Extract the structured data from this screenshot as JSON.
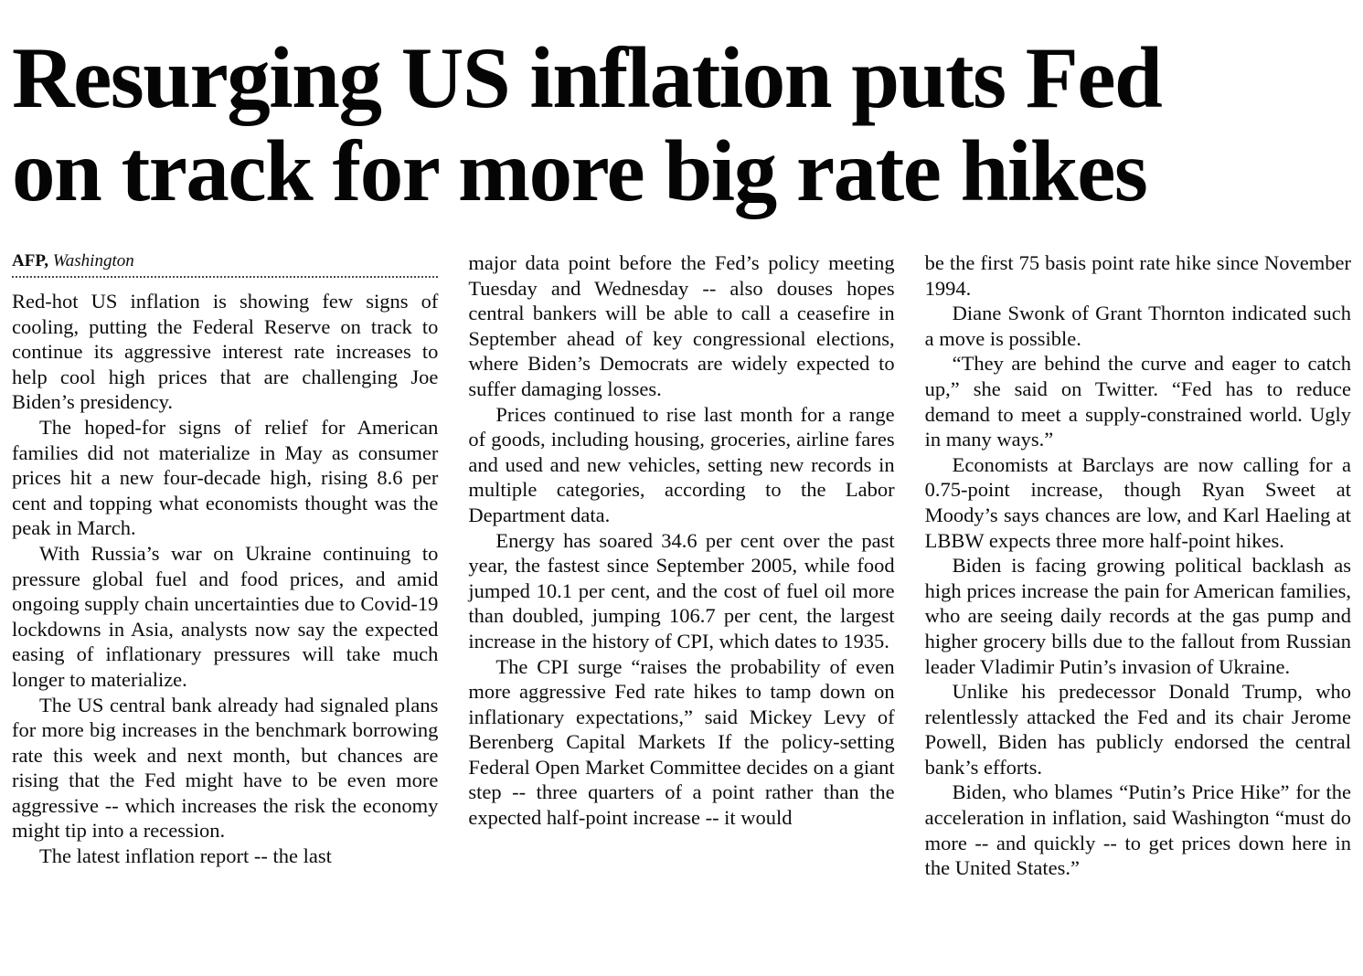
{
  "article": {
    "headline_lines": [
      "Resurging US inflation puts Fed",
      "on track for more big rate hikes"
    ],
    "byline": {
      "agency": "AFP,",
      "location": "Washington"
    },
    "col1": [
      "Red-hot US inflation is showing few signs of cooling, putting the Federal Reserve on track to continue its aggressive interest rate increases to help cool high prices that are challenging Joe Biden’s presidency.",
      "The hoped-for signs of relief for American families did not materialize in May as consumer prices hit a new four-decade high, rising 8.6 per cent and topping what economists thought was the peak in March.",
      "With Russia’s war on Ukraine continuing to pressure global fuel and food prices, and amid ongoing supply chain uncertainties due to Covid-19 lockdowns in Asia, analysts now say the expected easing of inflationary pressures will take much longer to materialize.",
      "The US central bank already had signaled plans for more big increases in the benchmark borrowing rate this week and next month, but chances are rising that the Fed might have to be even more aggressive -- which increases the risk the economy might tip into a recession.",
      "The latest inflation report -- the last"
    ],
    "col2": [
      "major data point before the Fed’s policy meeting Tuesday and Wednesday -- also douses hopes central bankers will be able to call a ceasefire in September ahead of key congressional elections, where Biden’s Democrats are widely expected to suffer damaging losses.",
      "Prices continued to rise last month for a range of goods, including housing, groceries, airline fares and used and new vehicles, setting new records in multiple categories, according to the Labor Department data.",
      "Energy has soared 34.6 per cent over the past year, the fastest since September 2005, while food jumped 10.1 per cent, and the cost of fuel oil more than doubled, jumping 106.7 per cent, the largest increase in the history of CPI, which dates to 1935.",
      "The CPI surge “raises the probability of even more aggressive Fed rate hikes to tamp down on inflationary expectations,” said Mickey Levy of Berenberg Capital Markets If the policy-setting Federal Open Market Committee decides on a giant step -- three quarters of a point rather than the expected half-point increase -- it would"
    ],
    "col3": [
      "be the first 75 basis point rate hike since November 1994.",
      "Diane Swonk of Grant Thornton indicated such a move is possible.",
      "“They are behind the curve and eager to catch up,” she said on Twitter. “Fed has to reduce demand to meet a supply-constrained world. Ugly in many ways.”",
      "Economists at Barclays are now calling for a 0.75-point increase, though Ryan Sweet at Moody’s says chances are low, and Karl Haeling at LBBW expects three more half-point hikes.",
      "Biden is facing growing political backlash as high prices increase the pain for American families, who are seeing daily records at the gas pump and higher grocery bills due to the fallout from Russian leader Vladimir Putin’s invasion of Ukraine.",
      "Unlike his predecessor Donald Trump, who relentlessly attacked the Fed and its chair Jerome Powell, Biden has publicly endorsed the central bank’s efforts.",
      "Biden, who blames “Putin’s Price Hike” for the acceleration in inflation, said Washington “must do more -- and quickly -- to get prices down here in the United States.”"
    ]
  }
}
